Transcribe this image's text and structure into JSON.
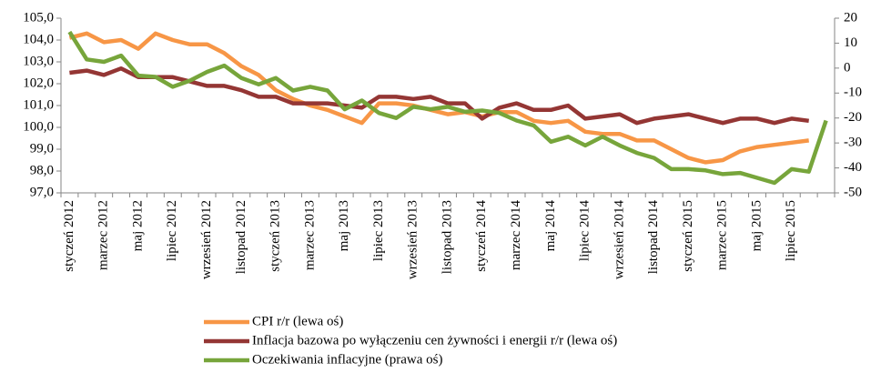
{
  "chart_data": {
    "type": "line",
    "categories": [
      "styczeń 2012",
      null,
      "marzec 2012",
      null,
      "maj 2012",
      null,
      "lipiec 2012",
      null,
      "wrzesień 2012",
      null,
      "listopad 2012",
      null,
      "styczeń 2013",
      null,
      "marzec 2013",
      null,
      "maj 2013",
      null,
      "lipiec 2013",
      null,
      "wrzesień 2013",
      null,
      "listopad 2013",
      null,
      "styczeń 2014",
      null,
      "marzec 2014",
      null,
      "maj 2014",
      null,
      "lipiec 2014",
      null,
      "wrzesień 2014",
      null,
      "listopad 2014",
      null,
      "styczeń 2015",
      null,
      "marzec 2015",
      null,
      "maj 2015",
      null,
      "lipiec 2015",
      null,
      null
    ],
    "series": [
      {
        "name": "CPI r/r (lewa oś)",
        "color": "#f79646",
        "axis": "y",
        "values": [
          104.1,
          104.3,
          103.9,
          104.0,
          103.6,
          104.3,
          104.0,
          103.8,
          103.8,
          103.4,
          102.8,
          102.4,
          101.7,
          101.3,
          101.0,
          100.8,
          100.5,
          100.2,
          101.1,
          101.1,
          101.0,
          100.8,
          100.6,
          100.7,
          100.5,
          100.7,
          100.7,
          100.3,
          100.2,
          100.3,
          99.8,
          99.7,
          99.7,
          99.4,
          99.4,
          99.0,
          98.6,
          98.4,
          98.5,
          98.9,
          99.1,
          99.2,
          99.3,
          99.4,
          null
        ]
      },
      {
        "name": "Inflacja bazowa po wyłączeniu cen żywności i energii r/r (lewa oś)",
        "color": "#943634",
        "axis": "y",
        "values": [
          102.5,
          102.6,
          102.4,
          102.7,
          102.3,
          102.3,
          102.3,
          102.1,
          101.9,
          101.9,
          101.7,
          101.4,
          101.4,
          101.1,
          101.1,
          101.1,
          101.0,
          100.9,
          101.4,
          101.4,
          101.3,
          101.4,
          101.1,
          101.1,
          100.4,
          100.9,
          101.1,
          100.8,
          100.8,
          101.0,
          100.4,
          100.5,
          100.6,
          100.2,
          100.4,
          100.5,
          100.6,
          100.4,
          100.2,
          100.4,
          100.4,
          100.2,
          100.4,
          100.3,
          null
        ]
      },
      {
        "name": "Oczekiwania inflacyjne (prawa oś)",
        "color": "#77a53b",
        "axis": "y2",
        "values": [
          14.5,
          3.5,
          2.5,
          5,
          -3,
          -3.5,
          -7.5,
          -5,
          -1.5,
          1,
          -4,
          -6.5,
          -4,
          -9,
          -7.5,
          -9,
          -16.5,
          -13,
          -18,
          -20,
          -15.5,
          -16.5,
          -15.5,
          -17.5,
          -17,
          -18,
          -21,
          -23,
          -29.5,
          -27.5,
          -31,
          -27.5,
          -31,
          -34,
          -36,
          -40.5,
          -40.5,
          -41,
          -42.5,
          -42,
          -44,
          -46,
          -40.5,
          -41.5,
          -21
        ]
      }
    ],
    "ylim": [
      97,
      105
    ],
    "yticks": [
      {
        "value": 97,
        "label": "97,0"
      },
      {
        "value": 98,
        "label": "98,0"
      },
      {
        "value": 99,
        "label": "99,0"
      },
      {
        "value": 100,
        "label": "100,0"
      },
      {
        "value": 101,
        "label": "101,0"
      },
      {
        "value": 102,
        "label": "102,0"
      },
      {
        "value": 103,
        "label": "103,0"
      },
      {
        "value": 104,
        "label": "104,0"
      },
      {
        "value": 105,
        "label": "105,0"
      }
    ],
    "y2lim": [
      -50,
      20
    ],
    "y2ticks": [
      -50,
      -40,
      -30,
      -20,
      -10,
      0,
      10,
      20
    ],
    "grid": false,
    "legend": "bottom"
  }
}
